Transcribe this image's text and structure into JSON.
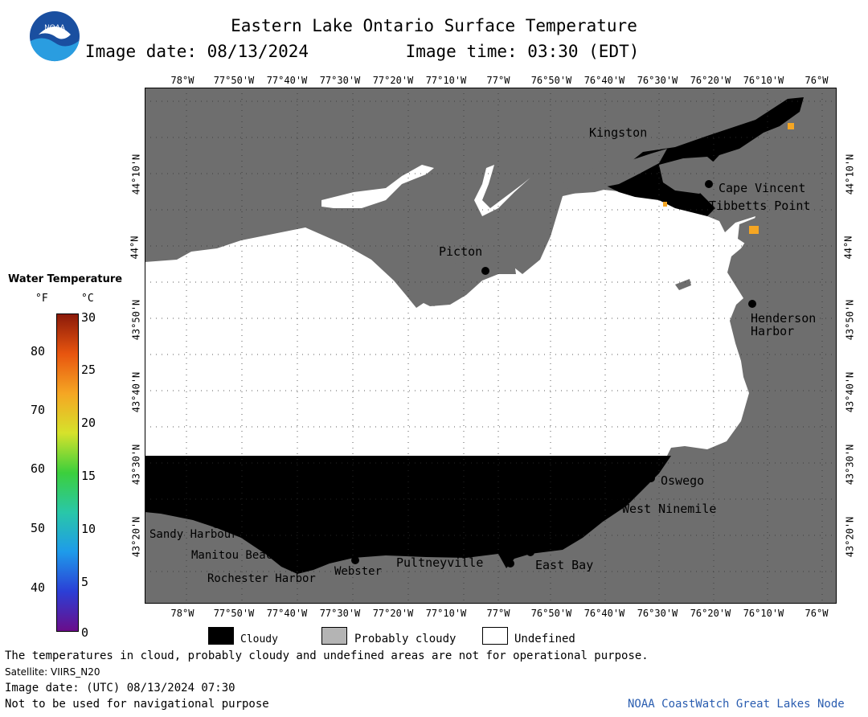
{
  "header": {
    "title": "Eastern Lake Ontario Surface Temperature",
    "date_label": "Image date: 08/13/2024",
    "time_label": "Image time: 03:30 (EDT)"
  },
  "axes": {
    "lon_top": [
      "78°W",
      "77°50'W",
      "77°40'W",
      "77°30'W",
      "77°20'W",
      "77°10'W",
      "77°W",
      "76°50'W",
      "76°40'W",
      "76°30'W",
      "76°20'W",
      "76°10'W",
      "76°W"
    ],
    "lon_bottom": [
      "78°W",
      "77°50'W",
      "77°40'W",
      "77°30'W",
      "77°20'W",
      "77°10'W",
      "77°W",
      "76°50'W",
      "76°40'W",
      "76°30'W",
      "76°20'W",
      "76°10'W",
      "76°W"
    ],
    "lat": [
      "44°10'N",
      "44°N",
      "43°50'N",
      "43°40'N",
      "43°30'N",
      "43°20'N"
    ]
  },
  "places": [
    {
      "name": "Kingston"
    },
    {
      "name": "Cape Vincent"
    },
    {
      "name": "Tibbetts Point"
    },
    {
      "name": "Picton"
    },
    {
      "name": "Henderson Harbor"
    },
    {
      "name": "Oswego"
    },
    {
      "name": "West Ninemile"
    },
    {
      "name": "Sandy Harbour"
    },
    {
      "name": "Manitou Beach"
    },
    {
      "name": "Rochester Harbor"
    },
    {
      "name": "Webster"
    },
    {
      "name": "Pultneyville"
    },
    {
      "name": "East Bay"
    }
  ],
  "colorbar": {
    "title": "Water Temperature",
    "unit_f": "°F",
    "unit_c": "°C",
    "f_ticks": [
      "80",
      "70",
      "60",
      "50",
      "40"
    ],
    "c_ticks": [
      "30",
      "25",
      "20",
      "15",
      "10",
      "5",
      "0"
    ],
    "c_min": 0,
    "c_max": 30,
    "colors": [
      "#6a0d8a",
      "#2b3fd6",
      "#1e9bea",
      "#29c7a8",
      "#3ccf3c",
      "#d6e22b",
      "#f5a623",
      "#e8550f",
      "#8b1a0a"
    ]
  },
  "legend": {
    "cloudy": "Cloudy",
    "probably_cloudy": "Probably cloudy",
    "undefined": "Undefined"
  },
  "footer": {
    "disclaimer": "The temperatures in cloud, probably cloudy and undefined areas are not for operational purpose.",
    "satellite": "Satellite: VIIRS_N20",
    "utc_date": "Image date: (UTC) 08/13/2024  07:30",
    "nav_note": "Not to be used for navigational purpose",
    "credit": "NOAA CoastWatch Great Lakes Node"
  },
  "logo": {
    "text": "NOAA"
  },
  "colors": {
    "land": "#6e6e6e",
    "cloud": "#000000",
    "undefined_water": "#ffffff",
    "credit": "#2a5db0"
  }
}
